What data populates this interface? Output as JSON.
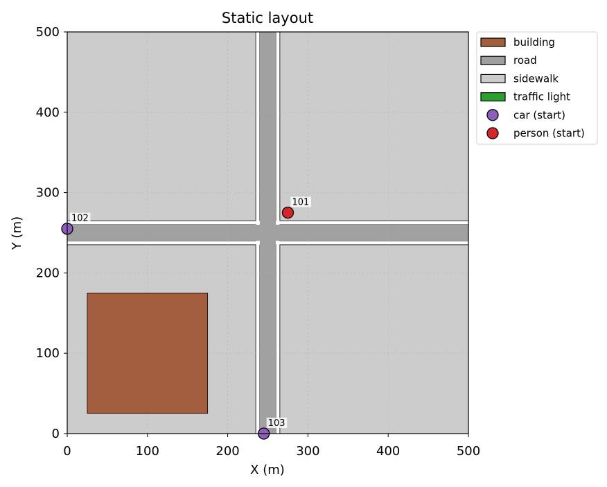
{
  "chart_data": {
    "type": "map",
    "title": "Static layout",
    "xlabel": "X (m)",
    "ylabel": "Y (m)",
    "xlim": [
      0,
      500
    ],
    "ylim": [
      0,
      500
    ],
    "xticks": [
      0,
      100,
      200,
      300,
      400,
      500
    ],
    "yticks": [
      0,
      100,
      200,
      300,
      400,
      500
    ],
    "grid": true,
    "legend_position": "outside-top-right",
    "colors": {
      "building": "#a35f3d",
      "road": "#a0a0a0",
      "sidewalk": "#cccccc",
      "traffic_light": "#2ca02c",
      "car": "#8c5fbe",
      "person": "#d62728"
    },
    "sidewalks": [
      {
        "x": [
          0,
          235
        ],
        "y": [
          265,
          500
        ]
      },
      {
        "x": [
          265,
          500
        ],
        "y": [
          265,
          500
        ]
      },
      {
        "x": [
          0,
          235
        ],
        "y": [
          0,
          235
        ]
      },
      {
        "x": [
          265,
          500
        ],
        "y": [
          0,
          235
        ]
      },
      {
        "x": [
          0,
          235
        ],
        "y": [
          240,
          242
        ]
      },
      {
        "x": [
          0,
          235
        ],
        "y": [
          258,
          260
        ]
      },
      {
        "x": [
          265,
          500
        ],
        "y": [
          240,
          242
        ]
      },
      {
        "x": [
          265,
          500
        ],
        "y": [
          258,
          260
        ]
      },
      {
        "x": [
          240,
          242
        ],
        "y": [
          0,
          235
        ]
      },
      {
        "x": [
          258,
          260
        ],
        "y": [
          0,
          235
        ]
      },
      {
        "x": [
          240,
          242
        ],
        "y": [
          265,
          500
        ]
      },
      {
        "x": [
          258,
          260
        ],
        "y": [
          265,
          500
        ]
      }
    ],
    "roads": [
      {
        "x": [
          0,
          500
        ],
        "y": [
          240,
          260
        ]
      },
      {
        "x": [
          240,
          260
        ],
        "y": [
          0,
          500
        ]
      }
    ],
    "buildings": [
      {
        "x": [
          25,
          175
        ],
        "y": [
          25,
          175
        ]
      }
    ],
    "agents": [
      {
        "kind": "person",
        "id": "101",
        "x": 275,
        "y": 275
      },
      {
        "kind": "car",
        "id": "102",
        "x": 0,
        "y": 255
      },
      {
        "kind": "car",
        "id": "103",
        "x": 245,
        "y": 0
      }
    ],
    "legend": [
      {
        "key": "building",
        "label": "building",
        "marker": "patch"
      },
      {
        "key": "road",
        "label": "road",
        "marker": "patch"
      },
      {
        "key": "sidewalk",
        "label": "sidewalk",
        "marker": "patch"
      },
      {
        "key": "traffic_light",
        "label": "traffic light",
        "marker": "patch"
      },
      {
        "key": "car",
        "label": "car (start)",
        "marker": "circle"
      },
      {
        "key": "person",
        "label": "person (start)",
        "marker": "circle"
      }
    ]
  }
}
